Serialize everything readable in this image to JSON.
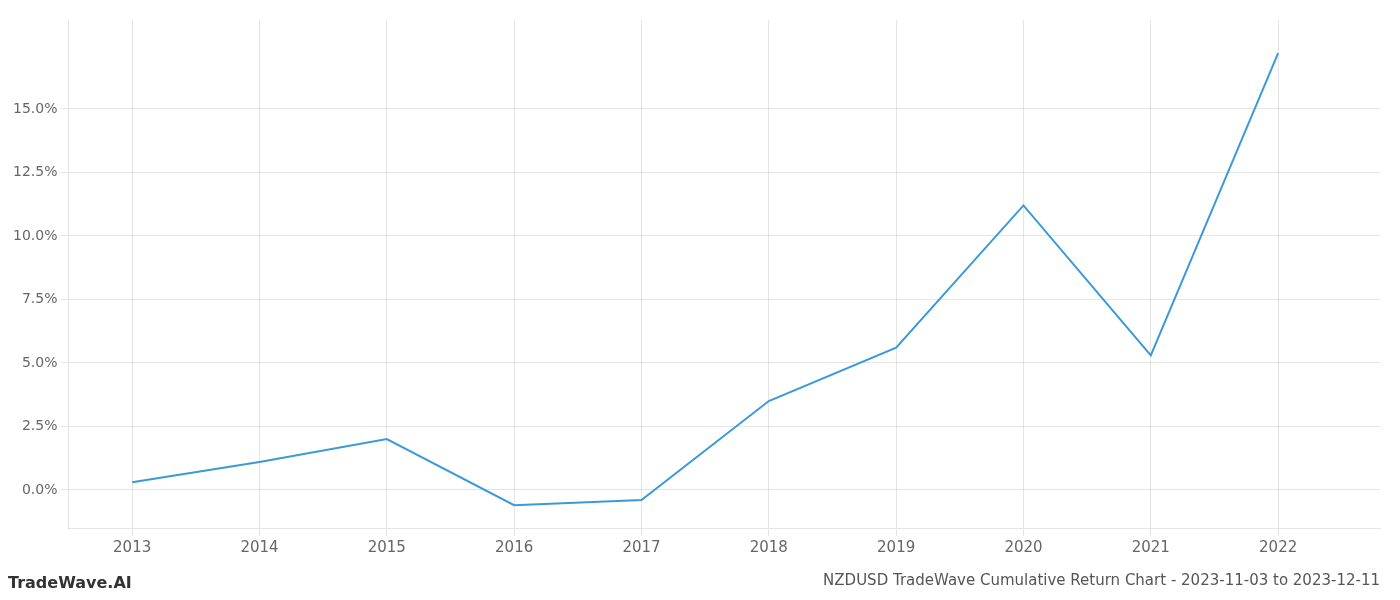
{
  "chart_data": {
    "type": "line",
    "title": "NZDUSD TradeWave Cumulative Return Chart - 2023-11-03 to 2023-12-11",
    "annotations": [
      "TradeWave.AI"
    ],
    "x": [
      2013,
      2014,
      2015,
      2016,
      2017,
      2018,
      2019,
      2020,
      2021,
      2022
    ],
    "values": [
      0.3,
      1.1,
      2.0,
      -0.6,
      -0.4,
      3.5,
      5.6,
      11.2,
      5.3,
      17.2
    ],
    "color": "#3a9ad9",
    "xlim": [
      2012.5,
      2022.8
    ],
    "xticks": [
      2013,
      2014,
      2015,
      2016,
      2017,
      2018,
      2019,
      2020,
      2021,
      2022
    ],
    "ylim": [
      -1.5,
      18.5
    ],
    "yticks": [
      {
        "value": 0.0,
        "label": "0.0%"
      },
      {
        "value": 2.5,
        "label": "2.5%"
      },
      {
        "value": 5.0,
        "label": "5.0%"
      },
      {
        "value": 7.5,
        "label": "7.5%"
      },
      {
        "value": 10.0,
        "label": "10.0%"
      },
      {
        "value": 12.5,
        "label": "12.5%"
      },
      {
        "value": 15.0,
        "label": "15.0%"
      }
    ],
    "grid": true
  }
}
